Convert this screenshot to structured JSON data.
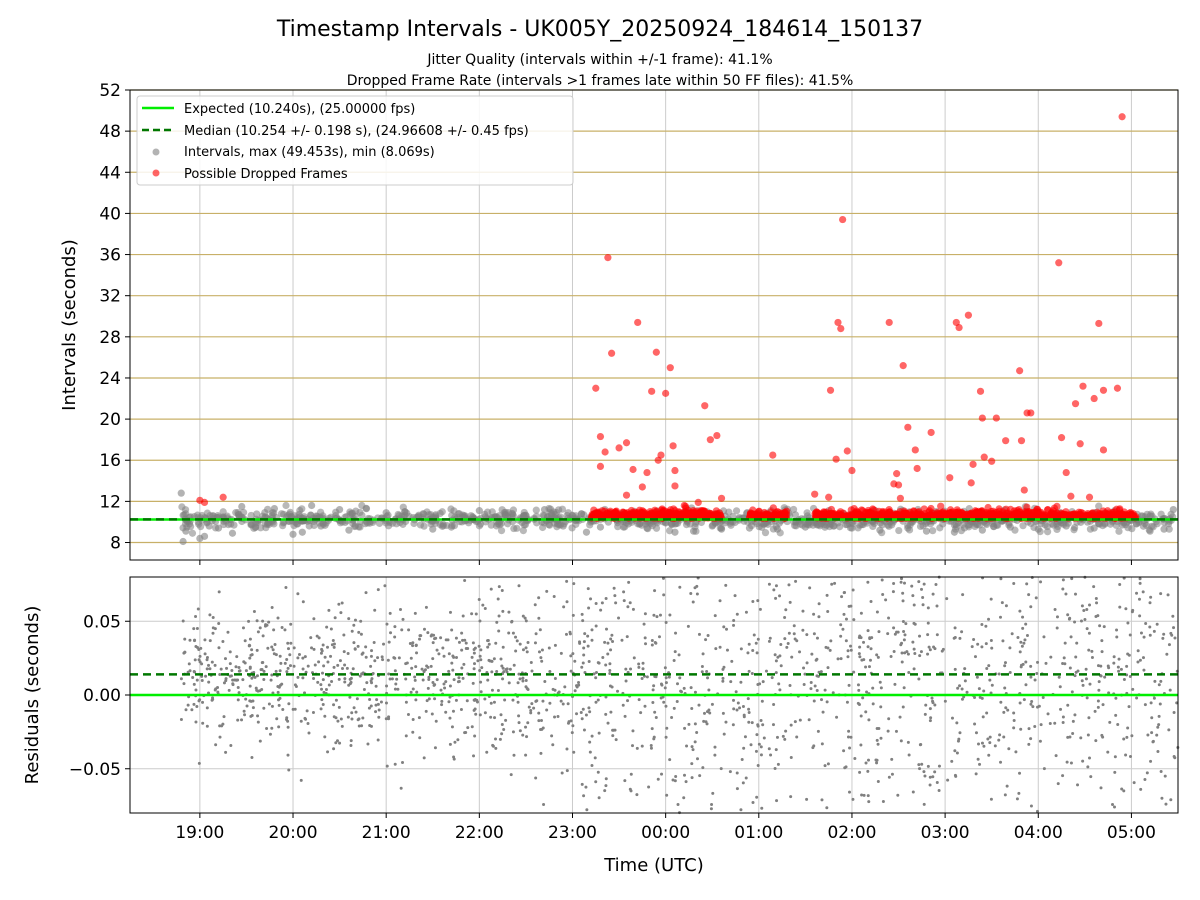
{
  "header": {
    "title": "Timestamp Intervals - UK005Y_20250924_184614_150137",
    "subtitle_1": "Jitter Quality (intervals within +/-1 frame): 41.1%",
    "subtitle_2": "Dropped Frame Rate (intervals >1 frames late within 50 FF files): 41.5%"
  },
  "colors": {
    "expected": "#00ee00",
    "median": "#007700",
    "intervals": "#808080",
    "dropped": "#ff0000",
    "hgrid": "#c8b068",
    "vgrid": "#cccccc"
  },
  "chart_data": [
    {
      "type": "scatter",
      "xlabel": "",
      "ylabel": "Intervals (seconds)",
      "xlim": [
        18.25,
        29.5
      ],
      "ylim": [
        6.3,
        52
      ],
      "y_ticks": [
        "8",
        "12",
        "16",
        "20",
        "24",
        "28",
        "32",
        "36",
        "40",
        "44",
        "48",
        "52"
      ],
      "grid": true,
      "legend_position": "upper-left",
      "lines": [
        {
          "name": "Expected (10.240s), (25.00000 fps)",
          "y": 10.24,
          "style": "solid"
        },
        {
          "name": "Median (10.254 +/- 0.198 s), (24.96608 +/- 0.45 fps)",
          "y": 10.254,
          "style": "dashed"
        }
      ],
      "series": [
        {
          "name": "Intervals, max (49.453s), min (8.069s)",
          "max": 49.453,
          "min": 8.069,
          "points": [
            [
              18.8,
              12.8
            ],
            [
              18.82,
              8.1
            ],
            [
              18.85,
              9.1
            ],
            [
              18.9,
              10.5
            ],
            [
              19.0,
              8.4
            ],
            [
              19.05,
              8.6
            ],
            [
              19.1,
              9.6
            ],
            [
              19.2,
              9.4
            ],
            [
              19.35,
              8.9
            ],
            [
              19.45,
              11.5
            ],
            [
              19.6,
              9.9
            ],
            [
              19.8,
              11.3
            ],
            [
              20.0,
              8.8
            ],
            [
              20.1,
              9.0
            ],
            [
              20.2,
              11.6
            ],
            [
              20.3,
              9.6
            ],
            [
              20.5,
              11.2
            ],
            [
              20.6,
              9.2
            ],
            [
              20.8,
              9.9
            ],
            [
              21.0,
              10.9
            ],
            [
              21.2,
              11.0
            ],
            [
              21.5,
              9.3
            ],
            [
              21.7,
              9.5
            ],
            [
              22.0,
              11.1
            ],
            [
              22.2,
              9.8
            ],
            [
              22.5,
              10.6
            ],
            [
              22.7,
              11.2
            ],
            [
              22.9,
              9.6
            ],
            [
              23.15,
              9.0
            ],
            [
              23.3,
              9.5
            ],
            [
              23.6,
              9.8
            ],
            [
              23.8,
              9.4
            ],
            [
              24.0,
              9.9
            ],
            [
              24.1,
              9.0
            ],
            [
              24.3,
              9.1
            ],
            [
              24.5,
              9.6
            ],
            [
              24.6,
              9.3
            ],
            [
              24.9,
              9.4
            ],
            [
              25.2,
              9.3
            ],
            [
              25.5,
              9.5
            ],
            [
              25.8,
              9.6
            ],
            [
              26.0,
              9.4
            ],
            [
              26.3,
              9.2
            ],
            [
              26.6,
              9.4
            ],
            [
              26.8,
              9.1
            ],
            [
              27.1,
              9.0
            ],
            [
              27.4,
              9.2
            ],
            [
              27.7,
              9.5
            ],
            [
              28.0,
              9.3
            ],
            [
              28.3,
              9.6
            ],
            [
              28.6,
              9.4
            ],
            [
              28.9,
              9.7
            ],
            [
              29.2,
              9.1
            ],
            [
              29.35,
              9.3
            ],
            [
              29.45,
              11.2
            ]
          ]
        },
        {
          "name": "Possible Dropped Frames",
          "points": [
            [
              19.0,
              12.1
            ],
            [
              19.05,
              11.9
            ],
            [
              19.25,
              12.4
            ],
            [
              23.25,
              23.0
            ],
            [
              23.3,
              18.3
            ],
            [
              23.3,
              15.4
            ],
            [
              23.35,
              16.8
            ],
            [
              23.38,
              35.7
            ],
            [
              23.42,
              26.4
            ],
            [
              23.5,
              17.2
            ],
            [
              23.58,
              17.7
            ],
            [
              23.58,
              12.6
            ],
            [
              23.65,
              15.1
            ],
            [
              23.7,
              29.4
            ],
            [
              23.75,
              13.4
            ],
            [
              23.8,
              14.8
            ],
            [
              23.85,
              22.7
            ],
            [
              23.9,
              26.5
            ],
            [
              23.92,
              16.0
            ],
            [
              23.95,
              16.5
            ],
            [
              24.0,
              22.5
            ],
            [
              24.05,
              25.0
            ],
            [
              24.08,
              17.4
            ],
            [
              24.1,
              15.0
            ],
            [
              24.1,
              13.5
            ],
            [
              24.2,
              11.6
            ],
            [
              24.35,
              11.9
            ],
            [
              24.42,
              21.3
            ],
            [
              24.48,
              18.0
            ],
            [
              24.55,
              18.4
            ],
            [
              24.6,
              12.3
            ],
            [
              25.15,
              16.5
            ],
            [
              25.6,
              12.7
            ],
            [
              25.75,
              12.4
            ],
            [
              25.77,
              22.8
            ],
            [
              25.83,
              16.1
            ],
            [
              25.85,
              29.4
            ],
            [
              25.88,
              28.8
            ],
            [
              25.9,
              39.4
            ],
            [
              25.95,
              16.9
            ],
            [
              26.0,
              15.0
            ],
            [
              26.4,
              29.4
            ],
            [
              26.45,
              13.7
            ],
            [
              26.48,
              14.7
            ],
            [
              26.5,
              13.6
            ],
            [
              26.52,
              12.3
            ],
            [
              26.55,
              25.2
            ],
            [
              26.6,
              19.2
            ],
            [
              26.68,
              17.0
            ],
            [
              26.7,
              15.2
            ],
            [
              26.85,
              18.7
            ],
            [
              27.05,
              14.3
            ],
            [
              27.12,
              29.4
            ],
            [
              27.15,
              28.9
            ],
            [
              27.25,
              30.1
            ],
            [
              27.28,
              13.8
            ],
            [
              27.3,
              15.6
            ],
            [
              27.38,
              22.7
            ],
            [
              27.4,
              20.1
            ],
            [
              27.42,
              16.3
            ],
            [
              27.5,
              15.9
            ],
            [
              27.55,
              20.1
            ],
            [
              27.65,
              17.9
            ],
            [
              27.82,
              17.9
            ],
            [
              27.8,
              24.7
            ],
            [
              27.85,
              13.1
            ],
            [
              27.88,
              20.6
            ],
            [
              27.92,
              20.6
            ],
            [
              28.25,
              18.2
            ],
            [
              28.3,
              14.8
            ],
            [
              28.35,
              12.5
            ],
            [
              28.4,
              21.5
            ],
            [
              28.45,
              17.6
            ],
            [
              28.48,
              23.2
            ],
            [
              28.6,
              22.0
            ],
            [
              28.65,
              29.3
            ],
            [
              28.7,
              17.0
            ],
            [
              28.7,
              22.8
            ],
            [
              28.85,
              23.0
            ],
            [
              28.9,
              49.4
            ],
            [
              28.22,
              35.2
            ],
            [
              28.55,
              12.4
            ]
          ],
          "cluster_ranges": [
            [
              23.2,
              24.3
            ],
            [
              24.2,
              24.6
            ],
            [
              24.9,
              25.3
            ],
            [
              25.6,
              26.3
            ],
            [
              26.3,
              29.05
            ]
          ]
        }
      ],
      "legend": [
        "Expected (10.240s), (25.00000 fps)",
        "Median (10.254 +/- 0.198 s), (24.96608 +/- 0.45 fps)",
        "Intervals, max (49.453s), min (8.069s)",
        "Possible Dropped Frames"
      ]
    },
    {
      "type": "scatter",
      "xlabel": "Time (UTC)",
      "ylabel": "Residuals (seconds)",
      "xlim": [
        18.25,
        29.5
      ],
      "ylim": [
        -0.08,
        0.08
      ],
      "x_ticks": [
        "19:00",
        "20:00",
        "21:00",
        "22:00",
        "23:00",
        "00:00",
        "01:00",
        "02:00",
        "03:00",
        "04:00",
        "05:00"
      ],
      "x_tick_values": [
        19,
        20,
        21,
        22,
        23,
        24,
        25,
        26,
        27,
        28,
        29
      ],
      "y_ticks": [
        "0.05",
        "0.00",
        "−0.05"
      ],
      "y_tick_values": [
        0.05,
        0.0,
        -0.05
      ],
      "grid": true,
      "lines": [
        {
          "name": "Expected",
          "y": 0.0,
          "style": "solid"
        },
        {
          "name": "Median",
          "y": 0.014,
          "style": "dashed"
        }
      ],
      "series": [
        {
          "name": "Residuals",
          "spread": [
            {
              "range": [
                18.8,
                19.5
              ],
              "sigma": 0.022
            },
            {
              "range": [
                19.5,
                22.0
              ],
              "sigma": 0.025
            },
            {
              "range": [
                22.0,
                23.1
              ],
              "sigma": 0.035
            },
            {
              "range": [
                23.1,
                29.5
              ],
              "sigma": 0.06
            }
          ]
        }
      ]
    }
  ]
}
